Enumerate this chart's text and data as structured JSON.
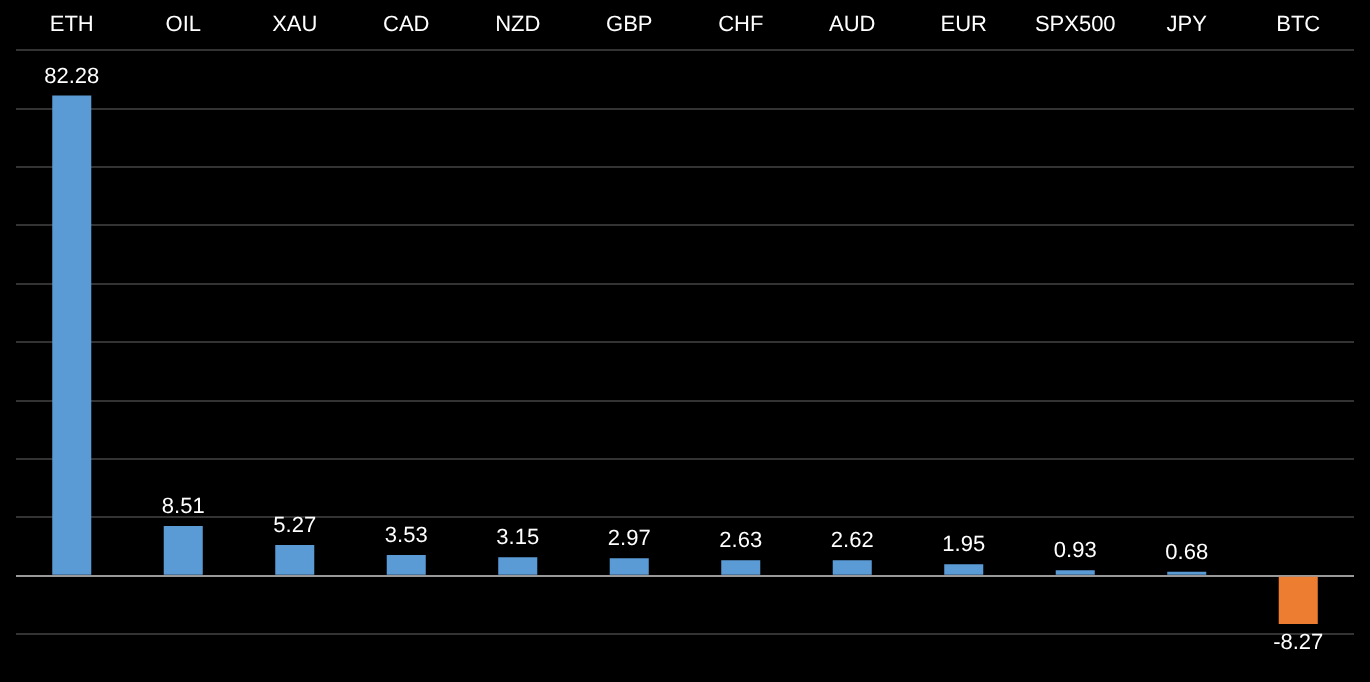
{
  "chart_data": {
    "type": "bar",
    "categories": [
      "ETH",
      "OIL",
      "XAU",
      "CAD",
      "NZD",
      "GBP",
      "CHF",
      "AUD",
      "EUR",
      "SPX500",
      "JPY",
      "BTC"
    ],
    "values": [
      82.28,
      8.51,
      5.27,
      3.53,
      3.15,
      2.97,
      2.63,
      2.62,
      1.95,
      0.93,
      0.68,
      -8.27
    ],
    "colors": [
      "#5b9bd5",
      "#5b9bd5",
      "#5b9bd5",
      "#5b9bd5",
      "#5b9bd5",
      "#5b9bd5",
      "#5b9bd5",
      "#5b9bd5",
      "#5b9bd5",
      "#5b9bd5",
      "#5b9bd5",
      "#ed7d31"
    ],
    "ylim": [
      -10,
      90
    ],
    "yticks": [
      {
        "value": -10,
        "label": null
      },
      {
        "value": 0,
        "label": null
      },
      {
        "value": 10,
        "label": null
      },
      {
        "value": 20,
        "label": null
      },
      {
        "value": 30,
        "label": null
      },
      {
        "value": 40,
        "label": null
      },
      {
        "value": 50,
        "label": null
      },
      {
        "value": 60,
        "label": null
      },
      {
        "value": 70,
        "label": null
      },
      {
        "value": 80,
        "label": null
      },
      {
        "value": 90,
        "label": null
      }
    ],
    "grid": "y",
    "tick_labels": "x",
    "data_labels": true,
    "legend": false
  }
}
